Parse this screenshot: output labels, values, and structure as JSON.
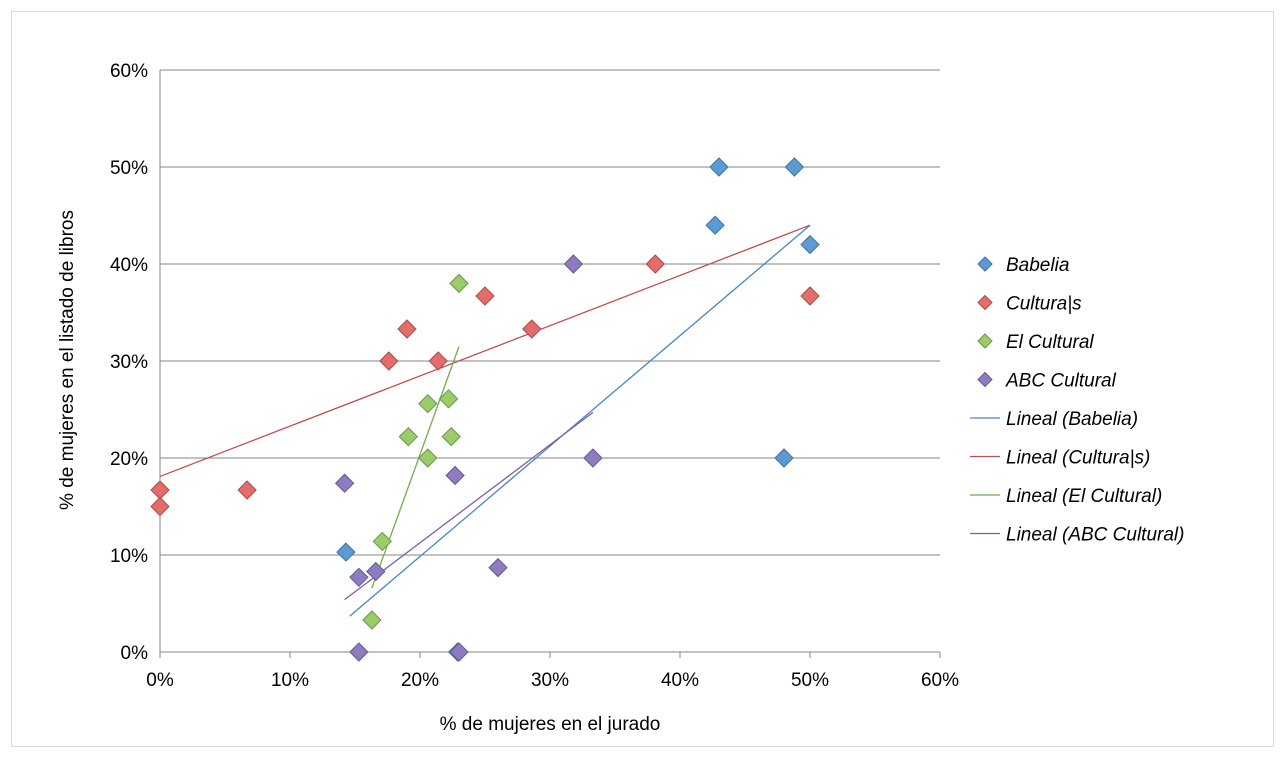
{
  "chart_data": {
    "type": "scatter",
    "title": "",
    "xlabel": "% de mujeres en el jurado",
    "ylabel": "% de mujeres en el listado de libros",
    "xlim": [
      0,
      0.6
    ],
    "ylim": [
      0,
      0.6
    ],
    "x_ticks": [
      0,
      0.1,
      0.2,
      0.3,
      0.4,
      0.5,
      0.6
    ],
    "y_ticks": [
      0,
      0.1,
      0.2,
      0.3,
      0.4,
      0.5,
      0.6
    ],
    "x_tick_labels": [
      "0%",
      "10%",
      "20%",
      "30%",
      "40%",
      "50%",
      "60%"
    ],
    "y_tick_labels": [
      "0%",
      "10%",
      "20%",
      "30%",
      "40%",
      "50%",
      "60%"
    ],
    "grid": "horizontal",
    "legend_position": "right",
    "series": [
      {
        "name": "Babelia",
        "marker": "diamond",
        "color": "#5b9bd5",
        "points": [
          [
            0.143,
            0.103
          ],
          [
            0.229,
            0.0
          ],
          [
            0.427,
            0.44
          ],
          [
            0.43,
            0.5
          ],
          [
            0.488,
            0.5
          ],
          [
            0.5,
            0.42
          ],
          [
            0.48,
            0.2
          ]
        ]
      },
      {
        "name": "Cultura|s",
        "marker": "diamond",
        "color": "#e46c6a",
        "points": [
          [
            0.0,
            0.167
          ],
          [
            0.0,
            0.15
          ],
          [
            0.067,
            0.167
          ],
          [
            0.176,
            0.3
          ],
          [
            0.19,
            0.333
          ],
          [
            0.214,
            0.3
          ],
          [
            0.25,
            0.367
          ],
          [
            0.286,
            0.333
          ],
          [
            0.381,
            0.4
          ],
          [
            0.5,
            0.367
          ]
        ]
      },
      {
        "name": "El Cultural",
        "marker": "diamond",
        "color": "#9bcc6a",
        "points": [
          [
            0.163,
            0.033
          ],
          [
            0.171,
            0.114
          ],
          [
            0.191,
            0.222
          ],
          [
            0.206,
            0.2
          ],
          [
            0.206,
            0.256
          ],
          [
            0.222,
            0.261
          ],
          [
            0.224,
            0.222
          ],
          [
            0.23,
            0.38
          ]
        ]
      },
      {
        "name": "ABC Cultural",
        "marker": "diamond",
        "color": "#8e7cc3",
        "points": [
          [
            0.142,
            0.174
          ],
          [
            0.153,
            0.077
          ],
          [
            0.166,
            0.083
          ],
          [
            0.153,
            0.0
          ],
          [
            0.227,
            0.182
          ],
          [
            0.23,
            0.0
          ],
          [
            0.26,
            0.087
          ],
          [
            0.318,
            0.4
          ],
          [
            0.333,
            0.2
          ]
        ]
      }
    ],
    "trendlines": [
      {
        "name": "Lineal (Babelia)",
        "color": "#4a86c5",
        "from": [
          0.146,
          0.037
        ],
        "to": [
          0.5,
          0.44
        ]
      },
      {
        "name": "Lineal (Cultura|s)",
        "color": "#c0504d",
        "from": [
          0.0,
          0.181
        ],
        "to": [
          0.5,
          0.44
        ]
      },
      {
        "name": "Lineal (El Cultural)",
        "color": "#70ad47",
        "from": [
          0.163,
          0.066
        ],
        "to": [
          0.23,
          0.315
        ]
      },
      {
        "name": "Lineal (ABC Cultural)",
        "color": "#7a5fa8",
        "from": [
          0.142,
          0.054
        ],
        "to": [
          0.333,
          0.247
        ]
      }
    ]
  }
}
